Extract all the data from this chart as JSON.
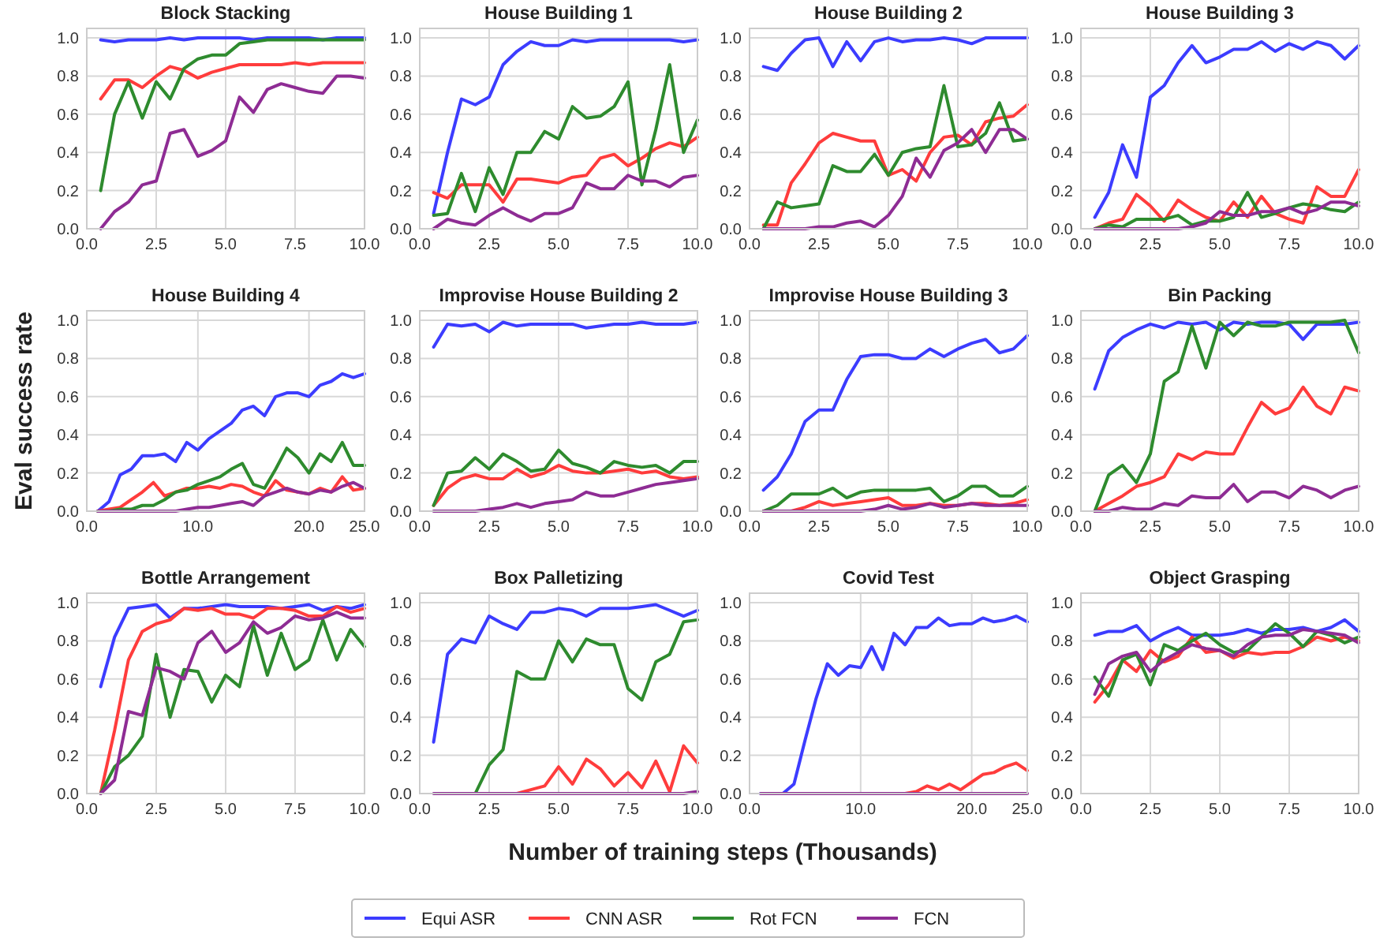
{
  "chart_data": [
    {
      "type": "line",
      "title": "Block Stacking",
      "legend": "bottom",
      "grid": true,
      "x": [
        0.5,
        1,
        1.5,
        2,
        2.5,
        3,
        3.5,
        4,
        4.5,
        5,
        5.5,
        6,
        6.5,
        7,
        7.5,
        8,
        8.5,
        9,
        9.5,
        10
      ],
      "xlim": [
        0,
        10
      ],
      "xticks": [
        {
          "value": 0,
          "label": "0.0"
        },
        {
          "value": 2.5,
          "label": "2.5"
        },
        {
          "value": 5,
          "label": "5.0"
        },
        {
          "value": 7.5,
          "label": "7.5"
        },
        {
          "value": 10,
          "label": "10.0"
        }
      ],
      "ylim": [
        0,
        1.05
      ],
      "yticks": [
        {
          "value": 0,
          "label": "0.0"
        },
        {
          "value": 0.2,
          "label": "0.2"
        },
        {
          "value": 0.4,
          "label": "0.4"
        },
        {
          "value": 0.6,
          "label": "0.6"
        },
        {
          "value": 0.8,
          "label": "0.8"
        },
        {
          "value": 1,
          "label": "1.0"
        }
      ],
      "series": [
        {
          "name": "Equi ASR",
          "color": "#3c3cff",
          "values": [
            0.99,
            0.98,
            0.99,
            0.99,
            0.99,
            1.0,
            0.99,
            1.0,
            1.0,
            1.0,
            1.0,
            0.99,
            1.0,
            1.0,
            1.0,
            1.0,
            0.99,
            1.0,
            1.0,
            1.0
          ]
        },
        {
          "name": "CNN ASR",
          "color": "#ff3c3c",
          "values": [
            0.68,
            0.78,
            0.78,
            0.74,
            0.8,
            0.85,
            0.83,
            0.79,
            0.82,
            0.84,
            0.86,
            0.86,
            0.86,
            0.86,
            0.87,
            0.86,
            0.87,
            0.87,
            0.87,
            0.87
          ]
        },
        {
          "name": "Rot FCN",
          "color": "#2e8b2e",
          "values": [
            0.2,
            0.6,
            0.77,
            0.58,
            0.77,
            0.68,
            0.84,
            0.89,
            0.91,
            0.91,
            0.97,
            0.98,
            0.99,
            0.99,
            0.99,
            0.99,
            0.99,
            0.99,
            0.99,
            0.99
          ]
        },
        {
          "name": "FCN",
          "color": "#8e2c94",
          "values": [
            0.0,
            0.09,
            0.14,
            0.23,
            0.25,
            0.5,
            0.52,
            0.38,
            0.41,
            0.46,
            0.69,
            0.61,
            0.73,
            0.76,
            0.74,
            0.72,
            0.71,
            0.8,
            0.8,
            0.79
          ]
        }
      ]
    },
    {
      "type": "line",
      "title": "House Building 1",
      "grid": true,
      "x": [
        0.5,
        1,
        1.5,
        2,
        2.5,
        3,
        3.5,
        4,
        4.5,
        5,
        5.5,
        6,
        6.5,
        7,
        7.5,
        8,
        8.5,
        9,
        9.5,
        10
      ],
      "xlim": [
        0,
        10
      ],
      "xticks": [
        {
          "value": 0,
          "label": "0.0"
        },
        {
          "value": 2.5,
          "label": "2.5"
        },
        {
          "value": 5,
          "label": "5.0"
        },
        {
          "value": 7.5,
          "label": "7.5"
        },
        {
          "value": 10,
          "label": "10.0"
        }
      ],
      "ylim": [
        0,
        1.05
      ],
      "yticks": [
        {
          "value": 0,
          "label": "0.0"
        },
        {
          "value": 0.2,
          "label": "0.2"
        },
        {
          "value": 0.4,
          "label": "0.4"
        },
        {
          "value": 0.6,
          "label": "0.6"
        },
        {
          "value": 0.8,
          "label": "0.8"
        },
        {
          "value": 1,
          "label": "1.0"
        }
      ],
      "series": [
        {
          "color": "#3c3cff",
          "values": [
            0.08,
            0.4,
            0.68,
            0.65,
            0.69,
            0.86,
            0.93,
            0.98,
            0.96,
            0.96,
            0.99,
            0.98,
            0.99,
            0.99,
            0.99,
            0.99,
            0.99,
            0.99,
            0.98,
            0.99
          ]
        },
        {
          "color": "#ff3c3c",
          "values": [
            0.19,
            0.16,
            0.23,
            0.23,
            0.23,
            0.14,
            0.26,
            0.26,
            0.25,
            0.24,
            0.27,
            0.28,
            0.37,
            0.39,
            0.33,
            0.37,
            0.42,
            0.45,
            0.43,
            0.48
          ]
        },
        {
          "color": "#2e8b2e",
          "values": [
            0.07,
            0.08,
            0.29,
            0.09,
            0.32,
            0.18,
            0.4,
            0.4,
            0.51,
            0.47,
            0.64,
            0.58,
            0.59,
            0.64,
            0.77,
            0.23,
            0.52,
            0.86,
            0.4,
            0.57
          ]
        },
        {
          "color": "#8e2c94",
          "values": [
            0.0,
            0.05,
            0.03,
            0.02,
            0.07,
            0.11,
            0.07,
            0.04,
            0.08,
            0.08,
            0.11,
            0.24,
            0.21,
            0.21,
            0.28,
            0.25,
            0.25,
            0.22,
            0.27,
            0.28
          ]
        }
      ]
    },
    {
      "type": "line",
      "title": "House Building 2",
      "grid": true,
      "x": [
        0.5,
        1,
        1.5,
        2,
        2.5,
        3,
        3.5,
        4,
        4.5,
        5,
        5.5,
        6,
        6.5,
        7,
        7.5,
        8,
        8.5,
        9,
        9.5,
        10
      ],
      "xlim": [
        0,
        10
      ],
      "xticks": [
        {
          "value": 0,
          "label": "0.0"
        },
        {
          "value": 2.5,
          "label": "2.5"
        },
        {
          "value": 5,
          "label": "5.0"
        },
        {
          "value": 7.5,
          "label": "7.5"
        },
        {
          "value": 10,
          "label": "10.0"
        }
      ],
      "ylim": [
        0,
        1.05
      ],
      "yticks": [
        {
          "value": 0,
          "label": "0.0"
        },
        {
          "value": 0.2,
          "label": "0.2"
        },
        {
          "value": 0.4,
          "label": "0.4"
        },
        {
          "value": 0.6,
          "label": "0.6"
        },
        {
          "value": 0.8,
          "label": "0.8"
        },
        {
          "value": 1,
          "label": "1.0"
        }
      ],
      "series": [
        {
          "color": "#3c3cff",
          "values": [
            0.85,
            0.83,
            0.92,
            0.99,
            1.0,
            0.85,
            0.98,
            0.88,
            0.98,
            1.0,
            0.98,
            0.99,
            0.99,
            1.0,
            0.99,
            0.97,
            1.0,
            1.0,
            1.0,
            1.0
          ]
        },
        {
          "color": "#ff3c3c",
          "values": [
            0.02,
            0.02,
            0.24,
            0.34,
            0.45,
            0.5,
            0.48,
            0.46,
            0.46,
            0.28,
            0.31,
            0.25,
            0.4,
            0.48,
            0.49,
            0.44,
            0.56,
            0.58,
            0.59,
            0.65
          ]
        },
        {
          "color": "#2e8b2e",
          "values": [
            0.0,
            0.14,
            0.11,
            0.12,
            0.13,
            0.33,
            0.3,
            0.3,
            0.39,
            0.28,
            0.4,
            0.42,
            0.43,
            0.75,
            0.43,
            0.44,
            0.5,
            0.66,
            0.46,
            0.47
          ]
        },
        {
          "color": "#8e2c94",
          "values": [
            0,
            0,
            0,
            0,
            0.01,
            0.01,
            0.03,
            0.04,
            0.01,
            0.07,
            0.17,
            0.37,
            0.27,
            0.41,
            0.45,
            0.52,
            0.4,
            0.52,
            0.52,
            0.47
          ]
        }
      ]
    },
    {
      "type": "line",
      "title": "House Building 3",
      "grid": true,
      "x": [
        0.5,
        1,
        1.5,
        2,
        2.5,
        3,
        3.5,
        4,
        4.5,
        5,
        5.5,
        6,
        6.5,
        7,
        7.5,
        8,
        8.5,
        9,
        9.5,
        10
      ],
      "xlim": [
        0,
        10
      ],
      "xticks": [
        {
          "value": 0,
          "label": "0.0"
        },
        {
          "value": 2.5,
          "label": "2.5"
        },
        {
          "value": 5,
          "label": "5.0"
        },
        {
          "value": 7.5,
          "label": "7.5"
        },
        {
          "value": 10,
          "label": "10.0"
        }
      ],
      "ylim": [
        0,
        1.05
      ],
      "yticks": [
        {
          "value": 0,
          "label": "0.0"
        },
        {
          "value": 0.2,
          "label": "0.2"
        },
        {
          "value": 0.4,
          "label": "0.4"
        },
        {
          "value": 0.6,
          "label": "0.6"
        },
        {
          "value": 0.8,
          "label": "0.8"
        },
        {
          "value": 1,
          "label": "1.0"
        }
      ],
      "series": [
        {
          "color": "#3c3cff",
          "values": [
            0.06,
            0.19,
            0.44,
            0.27,
            0.69,
            0.75,
            0.87,
            0.96,
            0.87,
            0.9,
            0.94,
            0.94,
            0.98,
            0.93,
            0.97,
            0.94,
            0.98,
            0.96,
            0.89,
            0.96
          ]
        },
        {
          "color": "#ff3c3c",
          "values": [
            0,
            0.03,
            0.05,
            0.18,
            0.12,
            0.04,
            0.15,
            0.1,
            0.06,
            0.04,
            0.14,
            0.06,
            0.17,
            0.08,
            0.05,
            0.03,
            0.22,
            0.17,
            0.17,
            0.31
          ]
        },
        {
          "color": "#2e8b2e",
          "values": [
            0,
            0.02,
            0.01,
            0.05,
            0.05,
            0.05,
            0.07,
            0.02,
            0.04,
            0.04,
            0.06,
            0.19,
            0.06,
            0.08,
            0.11,
            0.13,
            0.12,
            0.1,
            0.09,
            0.14
          ]
        },
        {
          "color": "#8e2c94",
          "values": [
            0,
            0,
            0,
            0,
            0,
            0,
            0,
            0.01,
            0.03,
            0.09,
            0.07,
            0.07,
            0.09,
            0.09,
            0.11,
            0.08,
            0.1,
            0.14,
            0.14,
            0.12
          ]
        }
      ]
    },
    {
      "type": "line",
      "title": "House Building 4",
      "ylabel": "Eval success rate",
      "grid": true,
      "x": [
        1,
        2,
        3,
        4,
        5,
        6,
        7,
        8,
        9,
        10,
        11,
        12,
        13,
        14,
        15,
        16,
        17,
        18,
        19,
        20,
        21,
        22,
        23,
        24,
        25
      ],
      "xlim": [
        0,
        25
      ],
      "xticks": [
        {
          "value": 0,
          "label": "0.0"
        },
        {
          "value": 10,
          "label": "10.0"
        },
        {
          "value": 20,
          "label": "20.0"
        },
        {
          "value": 25,
          "label": "25.0"
        }
      ],
      "ylim": [
        0,
        1.05
      ],
      "yticks": [
        {
          "value": 0,
          "label": "0.0"
        },
        {
          "value": 0.2,
          "label": "0.2"
        },
        {
          "value": 0.4,
          "label": "0.4"
        },
        {
          "value": 0.6,
          "label": "0.6"
        },
        {
          "value": 0.8,
          "label": "0.8"
        },
        {
          "value": 1,
          "label": "1.0"
        }
      ],
      "series": [
        {
          "color": "#3c3cff",
          "values": [
            0.0,
            0.05,
            0.19,
            0.22,
            0.29,
            0.29,
            0.3,
            0.26,
            0.36,
            0.32,
            0.38,
            0.42,
            0.46,
            0.53,
            0.55,
            0.5,
            0.6,
            0.62,
            0.62,
            0.6,
            0.66,
            0.68,
            0.72,
            0.7,
            0.72
          ]
        },
        {
          "color": "#ff3c3c",
          "values": [
            0,
            0.01,
            0.02,
            0.06,
            0.1,
            0.15,
            0.08,
            0.1,
            0.12,
            0.12,
            0.13,
            0.12,
            0.14,
            0.13,
            0.1,
            0.08,
            0.16,
            0.11,
            0.1,
            0.09,
            0.12,
            0.1,
            0.18,
            0.11,
            0.12
          ]
        },
        {
          "color": "#2e8b2e",
          "values": [
            0,
            0,
            0.01,
            0.01,
            0.03,
            0.03,
            0.06,
            0.1,
            0.11,
            0.14,
            0.16,
            0.18,
            0.22,
            0.25,
            0.14,
            0.12,
            0.22,
            0.33,
            0.28,
            0.2,
            0.3,
            0.26,
            0.36,
            0.24,
            0.24
          ]
        },
        {
          "color": "#8e2c94",
          "values": [
            0,
            0,
            0,
            0,
            0,
            0,
            0,
            0,
            0.01,
            0.02,
            0.02,
            0.03,
            0.04,
            0.05,
            0.03,
            0.08,
            0.1,
            0.12,
            0.1,
            0.09,
            0.11,
            0.1,
            0.13,
            0.15,
            0.12
          ]
        }
      ]
    },
    {
      "type": "line",
      "title": "Improvise House Building 2",
      "grid": true,
      "x": [
        0.5,
        1,
        1.5,
        2,
        2.5,
        3,
        3.5,
        4,
        4.5,
        5,
        5.5,
        6,
        6.5,
        7,
        7.5,
        8,
        8.5,
        9,
        9.5,
        10
      ],
      "xlim": [
        0,
        10
      ],
      "xticks": [
        {
          "value": 0,
          "label": "0.0"
        },
        {
          "value": 2.5,
          "label": "2.5"
        },
        {
          "value": 5,
          "label": "5.0"
        },
        {
          "value": 7.5,
          "label": "7.5"
        },
        {
          "value": 10,
          "label": "10.0"
        }
      ],
      "ylim": [
        0,
        1.05
      ],
      "yticks": [
        {
          "value": 0,
          "label": "0.0"
        },
        {
          "value": 0.2,
          "label": "0.2"
        },
        {
          "value": 0.4,
          "label": "0.4"
        },
        {
          "value": 0.6,
          "label": "0.6"
        },
        {
          "value": 0.8,
          "label": "0.8"
        },
        {
          "value": 1,
          "label": "1.0"
        }
      ],
      "series": [
        {
          "color": "#3c3cff",
          "values": [
            0.86,
            0.98,
            0.97,
            0.98,
            0.94,
            0.99,
            0.97,
            0.98,
            0.98,
            0.98,
            0.98,
            0.96,
            0.97,
            0.98,
            0.98,
            0.99,
            0.98,
            0.98,
            0.98,
            0.99
          ]
        },
        {
          "color": "#ff3c3c",
          "values": [
            0.03,
            0.12,
            0.17,
            0.19,
            0.17,
            0.17,
            0.22,
            0.18,
            0.2,
            0.24,
            0.21,
            0.2,
            0.2,
            0.21,
            0.22,
            0.2,
            0.21,
            0.18,
            0.17,
            0.18
          ]
        },
        {
          "color": "#2e8b2e",
          "values": [
            0.03,
            0.2,
            0.21,
            0.28,
            0.22,
            0.3,
            0.26,
            0.21,
            0.22,
            0.32,
            0.25,
            0.23,
            0.2,
            0.26,
            0.24,
            0.23,
            0.24,
            0.2,
            0.26,
            0.26
          ]
        },
        {
          "color": "#8e2c94",
          "values": [
            0,
            0,
            0,
            0,
            0.01,
            0.02,
            0.04,
            0.02,
            0.04,
            0.05,
            0.06,
            0.1,
            0.08,
            0.08,
            0.1,
            0.12,
            0.14,
            0.15,
            0.16,
            0.17
          ]
        }
      ]
    },
    {
      "type": "line",
      "title": "Improvise House Building 3",
      "grid": true,
      "x": [
        0.5,
        1,
        1.5,
        2,
        2.5,
        3,
        3.5,
        4,
        4.5,
        5,
        5.5,
        6,
        6.5,
        7,
        7.5,
        8,
        8.5,
        9,
        9.5,
        10
      ],
      "xlim": [
        0,
        10
      ],
      "xticks": [
        {
          "value": 0,
          "label": "0.0"
        },
        {
          "value": 2.5,
          "label": "2.5"
        },
        {
          "value": 5,
          "label": "5.0"
        },
        {
          "value": 7.5,
          "label": "7.5"
        },
        {
          "value": 10,
          "label": "10.0"
        }
      ],
      "ylim": [
        0,
        1.05
      ],
      "yticks": [
        {
          "value": 0,
          "label": "0.0"
        },
        {
          "value": 0.2,
          "label": "0.2"
        },
        {
          "value": 0.4,
          "label": "0.4"
        },
        {
          "value": 0.6,
          "label": "0.6"
        },
        {
          "value": 0.8,
          "label": "0.8"
        },
        {
          "value": 1,
          "label": "1.0"
        }
      ],
      "series": [
        {
          "color": "#3c3cff",
          "values": [
            0.11,
            0.18,
            0.3,
            0.47,
            0.53,
            0.53,
            0.69,
            0.81,
            0.82,
            0.82,
            0.8,
            0.8,
            0.85,
            0.81,
            0.85,
            0.88,
            0.9,
            0.83,
            0.85,
            0.92
          ]
        },
        {
          "color": "#ff3c3c",
          "values": [
            0,
            0,
            0,
            0.02,
            0.05,
            0.03,
            0.04,
            0.05,
            0.06,
            0.07,
            0.03,
            0.03,
            0.04,
            0.03,
            0.03,
            0.04,
            0.04,
            0.03,
            0.04,
            0.06
          ]
        },
        {
          "color": "#2e8b2e",
          "values": [
            0,
            0.03,
            0.09,
            0.09,
            0.09,
            0.12,
            0.07,
            0.1,
            0.11,
            0.11,
            0.11,
            0.11,
            0.12,
            0.05,
            0.08,
            0.13,
            0.13,
            0.08,
            0.08,
            0.13
          ]
        },
        {
          "color": "#8e2c94",
          "values": [
            0,
            0,
            0,
            0,
            0,
            0,
            0,
            0,
            0.01,
            0.03,
            0.01,
            0.02,
            0.04,
            0.02,
            0.03,
            0.04,
            0.03,
            0.03,
            0.03,
            0.03
          ]
        }
      ]
    },
    {
      "type": "line",
      "title": "Bin Packing",
      "grid": true,
      "x": [
        0.5,
        1,
        1.5,
        2,
        2.5,
        3,
        3.5,
        4,
        4.5,
        5,
        5.5,
        6,
        6.5,
        7,
        7.5,
        8,
        8.5,
        9,
        9.5,
        10
      ],
      "xlim": [
        0,
        10
      ],
      "xticks": [
        {
          "value": 0,
          "label": "0.0"
        },
        {
          "value": 2.5,
          "label": "2.5"
        },
        {
          "value": 5,
          "label": "5.0"
        },
        {
          "value": 7.5,
          "label": "7.5"
        },
        {
          "value": 10,
          "label": "10.0"
        }
      ],
      "ylim": [
        0,
        1.05
      ],
      "yticks": [
        {
          "value": 0,
          "label": "0.0"
        },
        {
          "value": 0.2,
          "label": "0.2"
        },
        {
          "value": 0.4,
          "label": "0.4"
        },
        {
          "value": 0.6,
          "label": "0.6"
        },
        {
          "value": 0.8,
          "label": "0.8"
        },
        {
          "value": 1,
          "label": "1.0"
        }
      ],
      "series": [
        {
          "color": "#3c3cff",
          "values": [
            0.64,
            0.84,
            0.91,
            0.95,
            0.98,
            0.96,
            0.99,
            0.98,
            0.99,
            0.95,
            0.99,
            0.98,
            0.99,
            0.99,
            0.98,
            0.9,
            0.98,
            0.98,
            0.98,
            0.99
          ]
        },
        {
          "color": "#ff3c3c",
          "values": [
            0,
            0.04,
            0.08,
            0.13,
            0.15,
            0.18,
            0.3,
            0.27,
            0.31,
            0.3,
            0.3,
            0.44,
            0.57,
            0.51,
            0.54,
            0.65,
            0.55,
            0.51,
            0.65,
            0.63
          ]
        },
        {
          "color": "#2e8b2e",
          "values": [
            0,
            0.19,
            0.24,
            0.15,
            0.3,
            0.68,
            0.73,
            0.97,
            0.75,
            0.99,
            0.92,
            0.99,
            0.97,
            0.97,
            0.99,
            0.99,
            0.99,
            0.99,
            1.0,
            0.83
          ]
        },
        {
          "color": "#8e2c94",
          "values": [
            0,
            0,
            0.02,
            0.01,
            0.01,
            0.04,
            0.03,
            0.08,
            0.07,
            0.07,
            0.14,
            0.05,
            0.1,
            0.1,
            0.07,
            0.13,
            0.11,
            0.07,
            0.11,
            0.13
          ]
        }
      ]
    },
    {
      "type": "line",
      "title": "Bottle Arrangement",
      "grid": true,
      "x": [
        0.5,
        1,
        1.5,
        2,
        2.5,
        3,
        3.5,
        4,
        4.5,
        5,
        5.5,
        6,
        6.5,
        7,
        7.5,
        8,
        8.5,
        9,
        9.5,
        10
      ],
      "xlim": [
        0,
        10
      ],
      "xticks": [
        {
          "value": 0,
          "label": "0.0"
        },
        {
          "value": 2.5,
          "label": "2.5"
        },
        {
          "value": 5,
          "label": "5.0"
        },
        {
          "value": 7.5,
          "label": "7.5"
        },
        {
          "value": 10,
          "label": "10.0"
        }
      ],
      "ylim": [
        0,
        1.05
      ],
      "yticks": [
        {
          "value": 0,
          "label": "0.0"
        },
        {
          "value": 0.2,
          "label": "0.2"
        },
        {
          "value": 0.4,
          "label": "0.4"
        },
        {
          "value": 0.6,
          "label": "0.6"
        },
        {
          "value": 0.8,
          "label": "0.8"
        },
        {
          "value": 1,
          "label": "1.0"
        }
      ],
      "series": [
        {
          "color": "#3c3cff",
          "values": [
            0.56,
            0.82,
            0.97,
            0.98,
            0.99,
            0.92,
            0.97,
            0.97,
            0.98,
            0.99,
            0.98,
            0.98,
            0.98,
            0.97,
            0.98,
            0.99,
            0.96,
            0.98,
            0.97,
            0.99
          ]
        },
        {
          "color": "#ff3c3c",
          "values": [
            0,
            0.33,
            0.7,
            0.85,
            0.89,
            0.91,
            0.97,
            0.96,
            0.97,
            0.94,
            0.94,
            0.92,
            0.97,
            0.97,
            0.96,
            0.93,
            0.93,
            0.98,
            0.95,
            0.97
          ]
        },
        {
          "color": "#2e8b2e",
          "values": [
            0,
            0.14,
            0.2,
            0.3,
            0.73,
            0.4,
            0.65,
            0.64,
            0.48,
            0.62,
            0.56,
            0.88,
            0.62,
            0.84,
            0.65,
            0.7,
            0.91,
            0.7,
            0.86,
            0.77
          ]
        },
        {
          "color": "#8e2c94",
          "values": [
            0,
            0.07,
            0.43,
            0.41,
            0.66,
            0.64,
            0.6,
            0.79,
            0.85,
            0.74,
            0.79,
            0.9,
            0.84,
            0.87,
            0.93,
            0.91,
            0.92,
            0.95,
            0.92,
            0.92
          ]
        }
      ]
    },
    {
      "type": "line",
      "title": "Box Palletizing",
      "xlabel": "Number of training steps (Thousands)",
      "grid": true,
      "x": [
        0.5,
        1,
        1.5,
        2,
        2.5,
        3,
        3.5,
        4,
        4.5,
        5,
        5.5,
        6,
        6.5,
        7,
        7.5,
        8,
        8.5,
        9,
        9.5,
        10
      ],
      "xlim": [
        0,
        10
      ],
      "xticks": [
        {
          "value": 0,
          "label": "0.0"
        },
        {
          "value": 2.5,
          "label": "2.5"
        },
        {
          "value": 5,
          "label": "5.0"
        },
        {
          "value": 7.5,
          "label": "7.5"
        },
        {
          "value": 10,
          "label": "10.0"
        }
      ],
      "ylim": [
        0,
        1.05
      ],
      "yticks": [
        {
          "value": 0,
          "label": "0.0"
        },
        {
          "value": 0.2,
          "label": "0.2"
        },
        {
          "value": 0.4,
          "label": "0.4"
        },
        {
          "value": 0.6,
          "label": "0.6"
        },
        {
          "value": 0.8,
          "label": "0.8"
        },
        {
          "value": 1,
          "label": "1.0"
        }
      ],
      "series": [
        {
          "color": "#3c3cff",
          "values": [
            0.27,
            0.73,
            0.81,
            0.79,
            0.93,
            0.89,
            0.86,
            0.95,
            0.95,
            0.97,
            0.96,
            0.93,
            0.97,
            0.97,
            0.97,
            0.98,
            0.99,
            0.96,
            0.93,
            0.96
          ]
        },
        {
          "color": "#ff3c3c",
          "values": [
            null,
            null,
            null,
            null,
            null,
            0,
            0,
            0.02,
            0.04,
            0.14,
            0.05,
            0.18,
            0.13,
            0.04,
            0.11,
            0.03,
            0.17,
            0.01,
            0.25,
            0.16
          ]
        },
        {
          "color": "#2e8b2e",
          "values": [
            null,
            null,
            0,
            0,
            0.15,
            0.23,
            0.64,
            0.6,
            0.6,
            0.8,
            0.69,
            0.81,
            0.78,
            0.78,
            0.55,
            0.49,
            0.69,
            0.73,
            0.9,
            0.91
          ]
        },
        {
          "color": "#8e2c94",
          "values": [
            0,
            0,
            0,
            0,
            0,
            0,
            0,
            0,
            0,
            0,
            0,
            0,
            0,
            0,
            0,
            0,
            0,
            0,
            0,
            0.01
          ]
        }
      ]
    },
    {
      "type": "line",
      "title": "Covid Test",
      "grid": true,
      "x": [
        1,
        2,
        3,
        4,
        5,
        6,
        7,
        8,
        9,
        10,
        11,
        12,
        13,
        14,
        15,
        16,
        17,
        18,
        19,
        20,
        21,
        22,
        23,
        24,
        25
      ],
      "xlim": [
        0,
        25
      ],
      "xticks": [
        {
          "value": 0,
          "label": "0.0"
        },
        {
          "value": 10,
          "label": "10.0"
        },
        {
          "value": 20,
          "label": "20.0"
        },
        {
          "value": 25,
          "label": "25.0"
        }
      ],
      "ylim": [
        0,
        1.05
      ],
      "yticks": [
        {
          "value": 0,
          "label": "0.0"
        },
        {
          "value": 0.2,
          "label": "0.2"
        },
        {
          "value": 0.4,
          "label": "0.4"
        },
        {
          "value": 0.6,
          "label": "0.6"
        },
        {
          "value": 0.8,
          "label": "0.8"
        },
        {
          "value": 1,
          "label": "1.0"
        }
      ],
      "series": [
        {
          "color": "#3c3cff",
          "values": [
            0,
            0,
            0,
            0.05,
            0.28,
            0.5,
            0.68,
            0.62,
            0.67,
            0.66,
            0.77,
            0.65,
            0.84,
            0.78,
            0.87,
            0.87,
            0.92,
            0.88,
            0.89,
            0.89,
            0.92,
            0.9,
            0.91,
            0.93,
            0.9
          ]
        },
        {
          "color": "#ff3c3c",
          "values": [
            null,
            null,
            null,
            null,
            null,
            null,
            null,
            null,
            null,
            null,
            null,
            null,
            null,
            0,
            0.01,
            0.04,
            0.02,
            0.05,
            0.02,
            0.06,
            0.1,
            0.11,
            0.14,
            0.16,
            0.12
          ]
        },
        {
          "color": "#8e2c94",
          "values": [
            0,
            0,
            0,
            0,
            0,
            0,
            0,
            0,
            0,
            0,
            0,
            0,
            0,
            0,
            0,
            0,
            0,
            0,
            0,
            0,
            0,
            0,
            0,
            0,
            0
          ]
        }
      ]
    },
    {
      "type": "line",
      "title": "Object Grasping",
      "grid": true,
      "x": [
        0.5,
        1,
        1.5,
        2,
        2.5,
        3,
        3.5,
        4,
        4.5,
        5,
        5.5,
        6,
        6.5,
        7,
        7.5,
        8,
        8.5,
        9,
        9.5,
        10
      ],
      "xlim": [
        0,
        10
      ],
      "xticks": [
        {
          "value": 0,
          "label": "0.0"
        },
        {
          "value": 2.5,
          "label": "2.5"
        },
        {
          "value": 5,
          "label": "5.0"
        },
        {
          "value": 7.5,
          "label": "7.5"
        },
        {
          "value": 10,
          "label": "10.0"
        }
      ],
      "ylim": [
        0,
        1.05
      ],
      "yticks": [
        {
          "value": 0,
          "label": "0.0"
        },
        {
          "value": 0.2,
          "label": "0.2"
        },
        {
          "value": 0.4,
          "label": "0.4"
        },
        {
          "value": 0.6,
          "label": "0.6"
        },
        {
          "value": 0.8,
          "label": "0.8"
        },
        {
          "value": 1,
          "label": "1.0"
        }
      ],
      "series": [
        {
          "color": "#3c3cff",
          "values": [
            0.83,
            0.85,
            0.85,
            0.88,
            0.8,
            0.84,
            0.87,
            0.83,
            0.83,
            0.83,
            0.84,
            0.86,
            0.84,
            0.86,
            0.86,
            0.87,
            0.85,
            0.87,
            0.91,
            0.85
          ]
        },
        {
          "color": "#ff3c3c",
          "values": [
            0.48,
            0.57,
            0.7,
            0.64,
            0.75,
            0.69,
            0.72,
            0.82,
            0.74,
            0.75,
            0.71,
            0.74,
            0.73,
            0.74,
            0.74,
            0.77,
            0.82,
            0.8,
            0.82,
            0.8
          ]
        },
        {
          "color": "#2e8b2e",
          "values": [
            0.61,
            0.51,
            0.7,
            0.73,
            0.57,
            0.78,
            0.75,
            0.8,
            0.84,
            0.78,
            0.74,
            0.75,
            0.82,
            0.89,
            0.84,
            0.77,
            0.85,
            0.83,
            0.79,
            0.82
          ]
        },
        {
          "color": "#8e2c94",
          "values": [
            0.52,
            0.68,
            0.72,
            0.74,
            0.64,
            0.7,
            0.74,
            0.78,
            0.76,
            0.75,
            0.72,
            0.78,
            0.82,
            0.83,
            0.83,
            0.86,
            0.85,
            0.84,
            0.83,
            0.79
          ]
        }
      ]
    }
  ]
}
